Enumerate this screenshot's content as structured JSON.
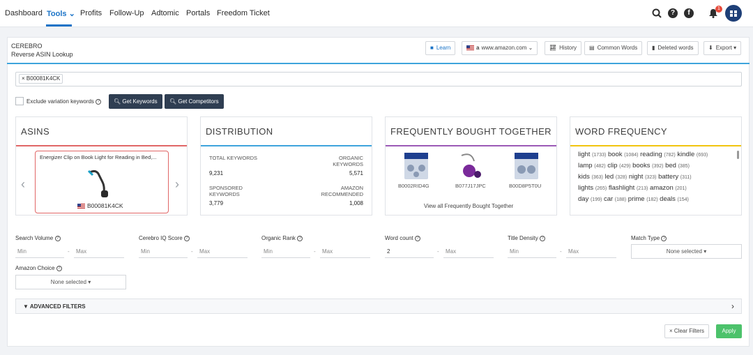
{
  "nav": {
    "items": [
      "Dashboard",
      "Tools",
      "Profits",
      "Follow-Up",
      "Adtomic",
      "Portals",
      "Freedom Ticket"
    ],
    "notification_count": "1"
  },
  "header": {
    "title": "CEREBRO",
    "subtitle": "Reverse ASIN Lookup",
    "buttons": {
      "learn": "Learn",
      "marketplace": "www.amazon.com",
      "history": "History",
      "common_words": "Common Words",
      "deleted_words": "Deleted words",
      "export": "Export"
    },
    "accent_color": "#3ea4dc"
  },
  "asin_input": {
    "chip": "B00081K4CK"
  },
  "controls": {
    "exclude_label": "Exclude variation keywords",
    "get_keywords": "Get Keywords",
    "get_competitors": "Get Competitors"
  },
  "cards": {
    "asins": {
      "title": "ASINS",
      "bar_color": "#e06666",
      "product_name": "Energizer Clip on Book Light for Reading in Bed,...",
      "product_asin": "B00081K4CK"
    },
    "distribution": {
      "title": "DISTRIBUTION",
      "bar_color": "#3ea4dc",
      "total_label": "TOTAL KEYWORDS",
      "total_value": "9,231",
      "organic_label": "ORGANIC KEYWORDS",
      "organic_value": "5,571",
      "sponsored_label": "SPONSORED KEYWORDS",
      "sponsored_value": "3,779",
      "recommended_label": "AMAZON RECOMMENDED",
      "recommended_value": "1,008"
    },
    "fbt": {
      "title": "FREQUENTLY BOUGHT TOGETHER",
      "bar_color": "#9b59b6",
      "items": [
        "B0002RID4G",
        "B077J17JPC",
        "B00D8P5T0U"
      ],
      "link": "View all Frequently Bought Together"
    },
    "word_frequency": {
      "title": "WORD FREQUENCY",
      "bar_color": "#f1c40f",
      "lines": [
        [
          [
            "light",
            "(1733)"
          ],
          [
            "book",
            "(1084)"
          ],
          [
            "reading",
            "(782)"
          ],
          [
            "kindle",
            "(693)"
          ]
        ],
        [
          [
            "lamp",
            "(482)"
          ],
          [
            "clip",
            "(429)"
          ],
          [
            "books",
            "(392)"
          ],
          [
            "bed",
            "(385)"
          ]
        ],
        [
          [
            "kids",
            "(363)"
          ],
          [
            "led",
            "(328)"
          ],
          [
            "night",
            "(323)"
          ],
          [
            "battery",
            "(311)"
          ]
        ],
        [
          [
            "lights",
            "(265)"
          ],
          [
            "flashlight",
            "(213)"
          ],
          [
            "amazon",
            "(201)"
          ]
        ],
        [
          [
            "day",
            "(199)"
          ],
          [
            "car",
            "(188)"
          ],
          [
            "prime",
            "(182)"
          ],
          [
            "deals",
            "(154)"
          ]
        ]
      ]
    }
  },
  "filters": {
    "search_volume": {
      "label": "Search Volume",
      "min": "Min",
      "max": "Max"
    },
    "iq_score": {
      "label": "Cerebro IQ Score",
      "min": "Min",
      "max": "Max"
    },
    "organic_rank": {
      "label": "Organic Rank",
      "min": "Min",
      "max": "Max"
    },
    "word_count": {
      "label": "Word count",
      "min_value": "2",
      "max": "Max"
    },
    "title_density": {
      "label": "Title Density",
      "min": "Min",
      "max": "Max"
    },
    "match_type": {
      "label": "Match Type",
      "value": "None selected"
    },
    "amazon_choice": {
      "label": "Amazon Choice",
      "value": "None selected"
    },
    "dash": "-"
  },
  "advanced": {
    "label": "ADVANCED FILTERS"
  },
  "footer": {
    "clear": "Clear Filters",
    "apply": "Apply",
    "apply_color": "#4cc26b"
  }
}
